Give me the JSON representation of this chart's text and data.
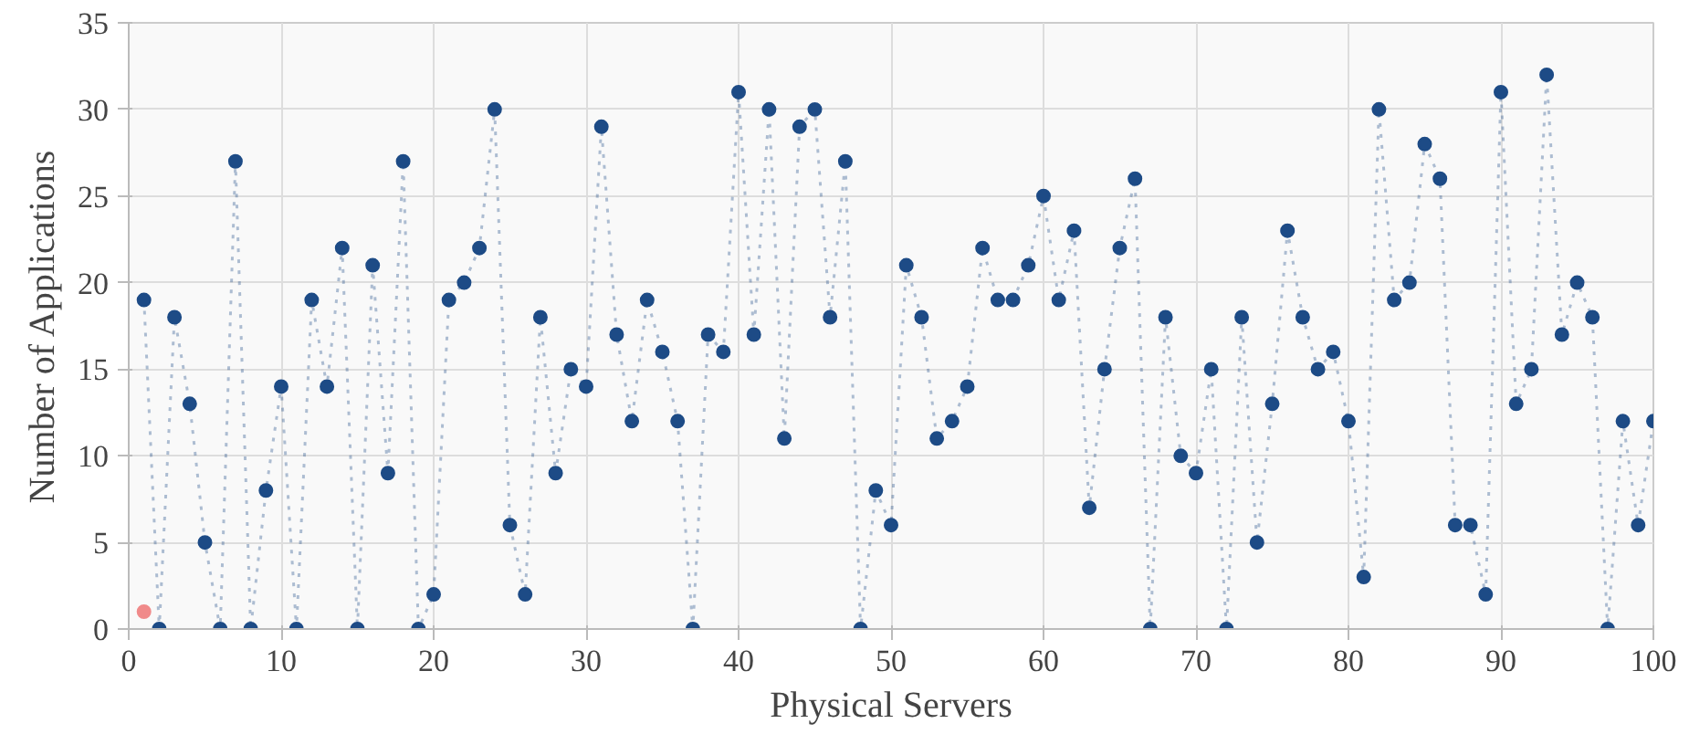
{
  "chart_data": {
    "type": "line",
    "xlabel": "Physical Servers",
    "ylabel": "Number of Applications",
    "xlim": [
      0,
      100
    ],
    "ylim": [
      0,
      35
    ],
    "xticks": [
      0,
      10,
      20,
      30,
      40,
      50,
      60,
      70,
      80,
      90,
      100
    ],
    "yticks": [
      0,
      5,
      10,
      15,
      20,
      25,
      30,
      35
    ],
    "grid": true,
    "series": [
      {
        "marker": "circle",
        "line_style": "dotted",
        "color": "#1d4b86",
        "x": [
          1,
          2,
          3,
          4,
          5,
          6,
          7,
          8,
          9,
          10,
          11,
          12,
          13,
          14,
          15,
          16,
          17,
          18,
          19,
          20,
          21,
          22,
          23,
          24,
          25,
          26,
          27,
          28,
          29,
          30,
          31,
          32,
          33,
          34,
          35,
          36,
          37,
          38,
          39,
          40,
          41,
          42,
          43,
          44,
          45,
          46,
          47,
          48,
          49,
          50,
          51,
          52,
          53,
          54,
          55,
          56,
          57,
          58,
          59,
          60,
          61,
          62,
          63,
          64,
          65,
          66,
          67,
          68,
          69,
          70,
          71,
          72,
          73,
          74,
          75,
          76,
          77,
          78,
          79,
          80,
          81,
          82,
          83,
          84,
          85,
          86,
          87,
          88,
          89,
          90,
          91,
          92,
          93,
          94,
          95,
          96,
          97,
          98,
          99,
          100
        ],
        "values": [
          19,
          0,
          18,
          13,
          5,
          0,
          27,
          0,
          8,
          14,
          0,
          19,
          14,
          22,
          0,
          21,
          9,
          27,
          0,
          2,
          19,
          20,
          22,
          30,
          6,
          2,
          18,
          9,
          15,
          14,
          29,
          17,
          12,
          19,
          16,
          12,
          0,
          17,
          16,
          31,
          17,
          30,
          11,
          29,
          30,
          18,
          27,
          0,
          8,
          6,
          21,
          18,
          11,
          12,
          14,
          22,
          19,
          19,
          21,
          25,
          19,
          23,
          7,
          15,
          22,
          26,
          0,
          18,
          10,
          9,
          15,
          0,
          18,
          5,
          13,
          23,
          18,
          15,
          16,
          12,
          3,
          30,
          19,
          20,
          28,
          26,
          6,
          6,
          2,
          31,
          13,
          15,
          32,
          17,
          20,
          18,
          0,
          12,
          6,
          12
        ]
      },
      {
        "type": "scatter",
        "marker": "circle",
        "color": "#f08a8a",
        "x": [
          1
        ],
        "values": [
          1
        ]
      }
    ]
  }
}
